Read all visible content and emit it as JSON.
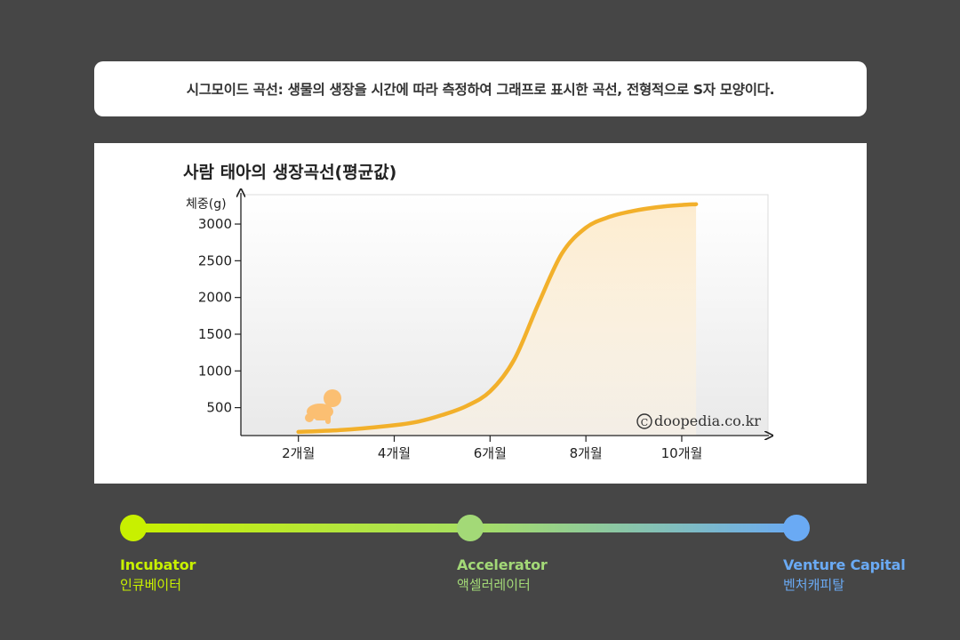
{
  "caption": "시그모이드 곡선: 생물의 생장을 시간에 따라 측정하여 그래프로 표시한 곡선, 전형적으로 S자 모양이다.",
  "chart_data": {
    "type": "line",
    "title": "사람 태아의 생장곡선(평균값)",
    "ylabel": "체중(g)",
    "xlabel": "",
    "x_ticks": [
      "2개월",
      "4개월",
      "6개월",
      "8개월",
      "10개월"
    ],
    "x_tick_values": [
      2,
      4,
      6,
      8,
      10
    ],
    "y_ticks": [
      500,
      1000,
      1500,
      2000,
      2500,
      3000
    ],
    "xlim": [
      0.8,
      11.8
    ],
    "ylim": [
      120,
      3400
    ],
    "grid": false,
    "series": [
      {
        "x": [
          2,
          3,
          4,
          4.5,
          5,
          5.5,
          6,
          6.5,
          7,
          7.5,
          8,
          8.5,
          9,
          9.5,
          10,
          10.3
        ],
        "y": [
          170,
          200,
          260,
          310,
          400,
          520,
          720,
          1150,
          1900,
          2600,
          2950,
          3100,
          3180,
          3230,
          3260,
          3270
        ]
      }
    ],
    "line_color": "#f2b02b",
    "fill_color": "#fbe8c4",
    "watermark": "doopedia.co.kr",
    "watermark_symbol": "©",
    "illustration": "baby-crawling"
  },
  "timeline": {
    "stages": [
      {
        "en": "Incubator",
        "ko": "인큐베이터",
        "color": "#c8f000"
      },
      {
        "en": "Accelerator",
        "ko": "액셀러레이터",
        "color": "#a3d977"
      },
      {
        "en": "Venture Capital",
        "ko": "벤처캐피탈",
        "color": "#6aaaf4"
      }
    ]
  }
}
